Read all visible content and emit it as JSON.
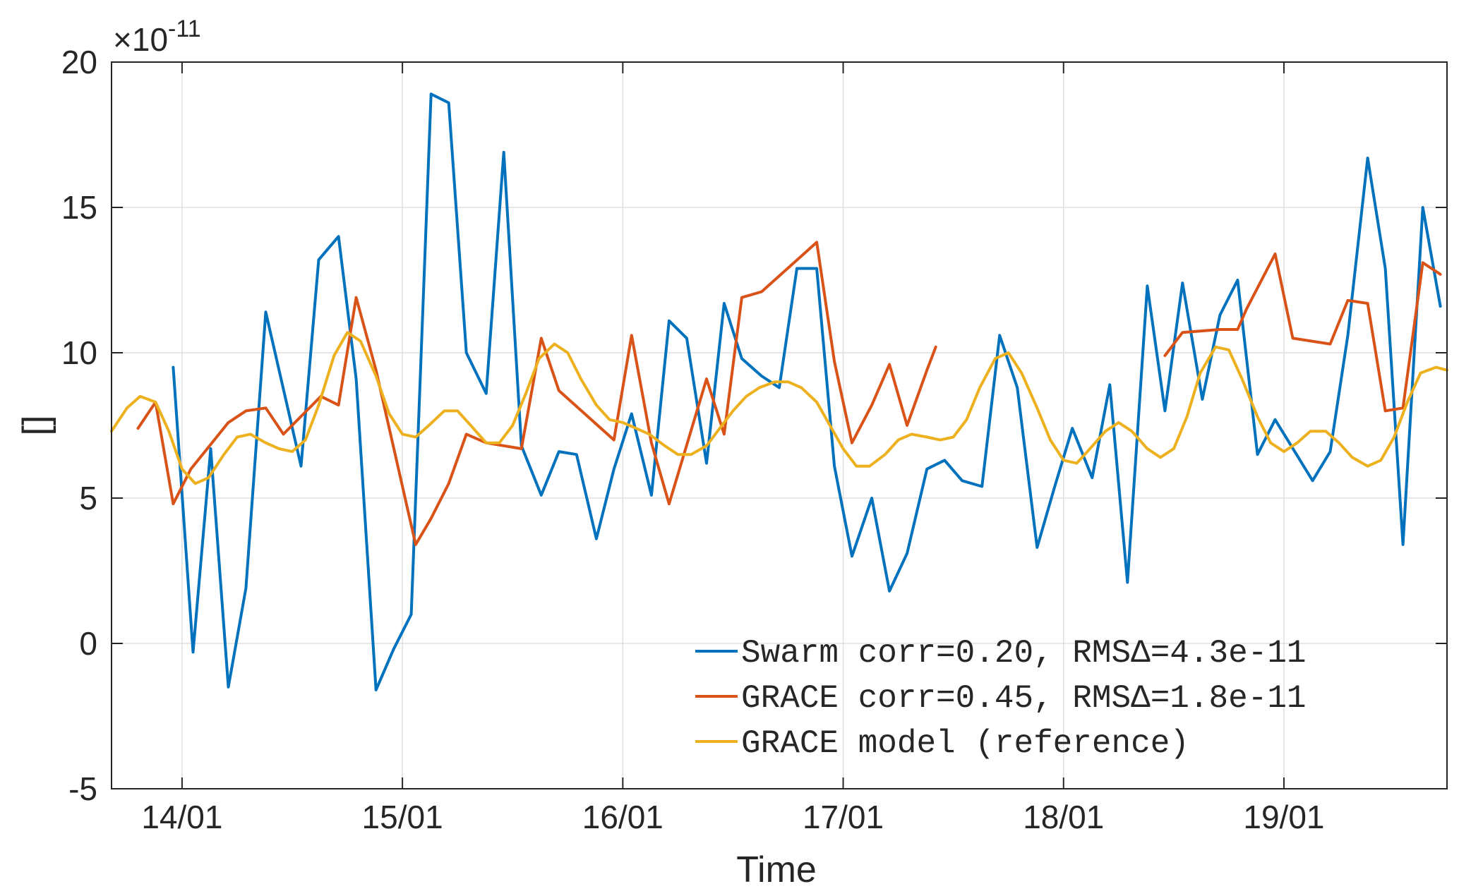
{
  "chart_data": {
    "type": "line",
    "xlabel": "Time",
    "ylabel": "[]",
    "exponent_label": "×10",
    "exponent_power": "-11",
    "x_ticks": [
      "14/01",
      "15/01",
      "16/01",
      "17/01",
      "18/01",
      "19/01"
    ],
    "y_ticks": [
      "20",
      "15",
      "10",
      "5",
      "0",
      "-5"
    ],
    "xlim": [
      -0.32,
      5.74
    ],
    "ylim": [
      -5,
      20
    ],
    "x_unit": "days since 14/01 00:00",
    "grid": true,
    "legend_position": "bottom-right",
    "series": [
      {
        "name": "Swarm corr=0.20, RMSΔ=4.3e-11",
        "color": "#0072BD",
        "segments": [
          [
            [
              -0.04,
              9.5
            ],
            [
              0.05,
              -0.3
            ],
            [
              0.13,
              6.7
            ],
            [
              0.21,
              -1.5
            ],
            [
              0.29,
              1.9
            ],
            [
              0.38,
              11.4
            ],
            [
              0.54,
              6.1
            ],
            [
              0.62,
              13.2
            ],
            [
              0.71,
              14.0
            ],
            [
              0.79,
              9.1
            ],
            [
              0.88,
              -1.6
            ],
            [
              0.96,
              -0.2
            ],
            [
              1.04,
              1.0
            ],
            [
              1.13,
              18.9
            ],
            [
              1.21,
              18.6
            ],
            [
              1.29,
              10.0
            ],
            [
              1.38,
              8.6
            ],
            [
              1.46,
              16.9
            ],
            [
              1.54,
              6.8
            ],
            [
              1.63,
              5.1
            ],
            [
              1.71,
              6.6
            ],
            [
              1.79,
              6.5
            ],
            [
              1.88,
              3.6
            ],
            [
              1.96,
              6.0
            ],
            [
              2.04,
              7.9
            ],
            [
              2.13,
              5.1
            ],
            [
              2.21,
              11.1
            ],
            [
              2.29,
              10.5
            ],
            [
              2.38,
              6.2
            ],
            [
              2.46,
              11.7
            ],
            [
              2.54,
              9.8
            ],
            [
              2.63,
              9.2
            ],
            [
              2.71,
              8.8
            ],
            [
              2.79,
              12.9
            ],
            [
              2.88,
              12.9
            ],
            [
              2.96,
              6.1
            ],
            [
              3.04,
              3.0
            ],
            [
              3.13,
              5.0
            ],
            [
              3.21,
              1.8
            ],
            [
              3.29,
              3.1
            ],
            [
              3.38,
              6.0
            ],
            [
              3.46,
              6.3
            ],
            [
              3.54,
              5.6
            ],
            [
              3.63,
              5.4
            ],
            [
              3.71,
              10.6
            ],
            [
              3.79,
              8.8
            ],
            [
              3.88,
              3.3
            ],
            [
              3.96,
              5.4
            ],
            [
              4.04,
              7.4
            ],
            [
              4.13,
              5.7
            ],
            [
              4.21,
              8.9
            ],
            [
              4.29,
              2.1
            ],
            [
              4.38,
              12.3
            ],
            [
              4.46,
              8.0
            ],
            [
              4.54,
              12.4
            ],
            [
              4.63,
              8.4
            ],
            [
              4.71,
              11.3
            ],
            [
              4.79,
              12.5
            ],
            [
              4.88,
              6.5
            ],
            [
              4.96,
              7.7
            ],
            [
              5.13,
              5.6
            ],
            [
              5.21,
              6.6
            ],
            [
              5.29,
              10.6
            ],
            [
              5.38,
              16.7
            ],
            [
              5.46,
              12.9
            ],
            [
              5.54,
              3.4
            ],
            [
              5.63,
              15.0
            ],
            [
              5.71,
              11.6
            ]
          ]
        ]
      },
      {
        "name": "GRACE corr=0.45, RMSΔ=1.8e-11",
        "color": "#D95319",
        "segments": [
          [
            [
              -0.2,
              7.4
            ],
            [
              -0.12,
              8.3
            ],
            [
              -0.04,
              4.8
            ],
            [
              0.04,
              6.0
            ],
            [
              0.21,
              7.6
            ],
            [
              0.29,
              8.0
            ],
            [
              0.38,
              8.1
            ],
            [
              0.46,
              7.2
            ],
            [
              0.63,
              8.5
            ],
            [
              0.71,
              8.2
            ],
            [
              0.79,
              11.9
            ],
            [
              0.88,
              9.4
            ],
            [
              1.06,
              3.4
            ],
            [
              1.13,
              4.3
            ],
            [
              1.21,
              5.5
            ],
            [
              1.29,
              7.2
            ],
            [
              1.38,
              6.9
            ],
            [
              1.54,
              6.7
            ],
            [
              1.63,
              10.5
            ],
            [
              1.71,
              8.7
            ],
            [
              1.96,
              7.0
            ],
            [
              2.04,
              10.6
            ],
            [
              2.13,
              6.9
            ],
            [
              2.21,
              4.8
            ],
            [
              2.38,
              9.1
            ],
            [
              2.46,
              7.2
            ],
            [
              2.54,
              11.9
            ],
            [
              2.63,
              12.1
            ],
            [
              2.88,
              13.8
            ],
            [
              2.96,
              9.7
            ],
            [
              3.04,
              6.9
            ],
            [
              3.13,
              8.2
            ],
            [
              3.21,
              9.6
            ],
            [
              3.29,
              7.5
            ],
            [
              3.38,
              9.4
            ],
            [
              3.42,
              10.2
            ]
          ],
          [
            [
              4.46,
              9.9
            ],
            [
              4.54,
              10.7
            ],
            [
              4.71,
              10.8
            ],
            [
              4.79,
              10.8
            ],
            [
              4.83,
              11.5
            ],
            [
              4.96,
              13.4
            ],
            [
              5.04,
              10.5
            ],
            [
              5.21,
              10.3
            ],
            [
              5.29,
              11.8
            ],
            [
              5.38,
              11.7
            ],
            [
              5.46,
              8.0
            ],
            [
              5.54,
              8.1
            ],
            [
              5.63,
              13.1
            ],
            [
              5.71,
              12.7
            ]
          ]
        ]
      },
      {
        "name": "GRACE model (reference)",
        "color": "#EDB120",
        "segments": [
          [
            [
              -0.32,
              7.3
            ],
            [
              -0.25,
              8.1
            ],
            [
              -0.19,
              8.5
            ],
            [
              -0.12,
              8.3
            ],
            [
              -0.06,
              7.3
            ],
            [
              0.0,
              6.0
            ],
            [
              0.06,
              5.5
            ],
            [
              0.12,
              5.7
            ],
            [
              0.19,
              6.5
            ],
            [
              0.25,
              7.1
            ],
            [
              0.31,
              7.2
            ],
            [
              0.38,
              6.9
            ],
            [
              0.44,
              6.7
            ],
            [
              0.5,
              6.6
            ],
            [
              0.56,
              7.0
            ],
            [
              0.62,
              8.2
            ],
            [
              0.69,
              9.9
            ],
            [
              0.75,
              10.7
            ],
            [
              0.81,
              10.4
            ],
            [
              0.88,
              9.2
            ],
            [
              0.94,
              7.9
            ],
            [
              1.0,
              7.2
            ],
            [
              1.06,
              7.1
            ],
            [
              1.12,
              7.5
            ],
            [
              1.19,
              8.0
            ],
            [
              1.25,
              8.0
            ],
            [
              1.31,
              7.5
            ],
            [
              1.38,
              6.9
            ],
            [
              1.44,
              6.9
            ],
            [
              1.5,
              7.5
            ],
            [
              1.56,
              8.6
            ],
            [
              1.62,
              9.8
            ],
            [
              1.69,
              10.3
            ],
            [
              1.75,
              10.0
            ],
            [
              1.81,
              9.1
            ],
            [
              1.88,
              8.2
            ],
            [
              1.94,
              7.7
            ],
            [
              2.0,
              7.6
            ],
            [
              2.06,
              7.4
            ],
            [
              2.12,
              7.2
            ],
            [
              2.19,
              6.8
            ],
            [
              2.25,
              6.5
            ],
            [
              2.31,
              6.5
            ],
            [
              2.38,
              6.8
            ],
            [
              2.44,
              7.4
            ],
            [
              2.5,
              8.0
            ],
            [
              2.56,
              8.5
            ],
            [
              2.62,
              8.8
            ],
            [
              2.69,
              9.0
            ],
            [
              2.75,
              9.0
            ],
            [
              2.81,
              8.8
            ],
            [
              2.88,
              8.3
            ],
            [
              2.94,
              7.5
            ],
            [
              3.0,
              6.7
            ],
            [
              3.06,
              6.1
            ],
            [
              3.12,
              6.1
            ],
            [
              3.19,
              6.5
            ],
            [
              3.25,
              7.0
            ],
            [
              3.31,
              7.2
            ],
            [
              3.38,
              7.1
            ],
            [
              3.44,
              7.0
            ],
            [
              3.5,
              7.1
            ],
            [
              3.56,
              7.7
            ],
            [
              3.62,
              8.8
            ],
            [
              3.69,
              9.8
            ],
            [
              3.75,
              10.0
            ],
            [
              3.81,
              9.3
            ],
            [
              3.88,
              8.1
            ],
            [
              3.94,
              7.0
            ],
            [
              4.0,
              6.3
            ],
            [
              4.06,
              6.2
            ],
            [
              4.12,
              6.7
            ],
            [
              4.19,
              7.3
            ],
            [
              4.25,
              7.6
            ],
            [
              4.31,
              7.3
            ],
            [
              4.38,
              6.7
            ],
            [
              4.44,
              6.4
            ],
            [
              4.5,
              6.7
            ],
            [
              4.56,
              7.8
            ],
            [
              4.62,
              9.3
            ],
            [
              4.69,
              10.2
            ],
            [
              4.75,
              10.1
            ],
            [
              4.81,
              9.1
            ],
            [
              4.88,
              7.8
            ],
            [
              4.94,
              6.9
            ],
            [
              5.0,
              6.6
            ],
            [
              5.06,
              6.9
            ],
            [
              5.12,
              7.3
            ],
            [
              5.19,
              7.3
            ],
            [
              5.25,
              6.9
            ],
            [
              5.31,
              6.4
            ],
            [
              5.38,
              6.1
            ],
            [
              5.44,
              6.3
            ],
            [
              5.5,
              7.1
            ],
            [
              5.56,
              8.3
            ],
            [
              5.62,
              9.3
            ],
            [
              5.69,
              9.5
            ],
            [
              5.74,
              9.4
            ]
          ]
        ]
      }
    ]
  }
}
